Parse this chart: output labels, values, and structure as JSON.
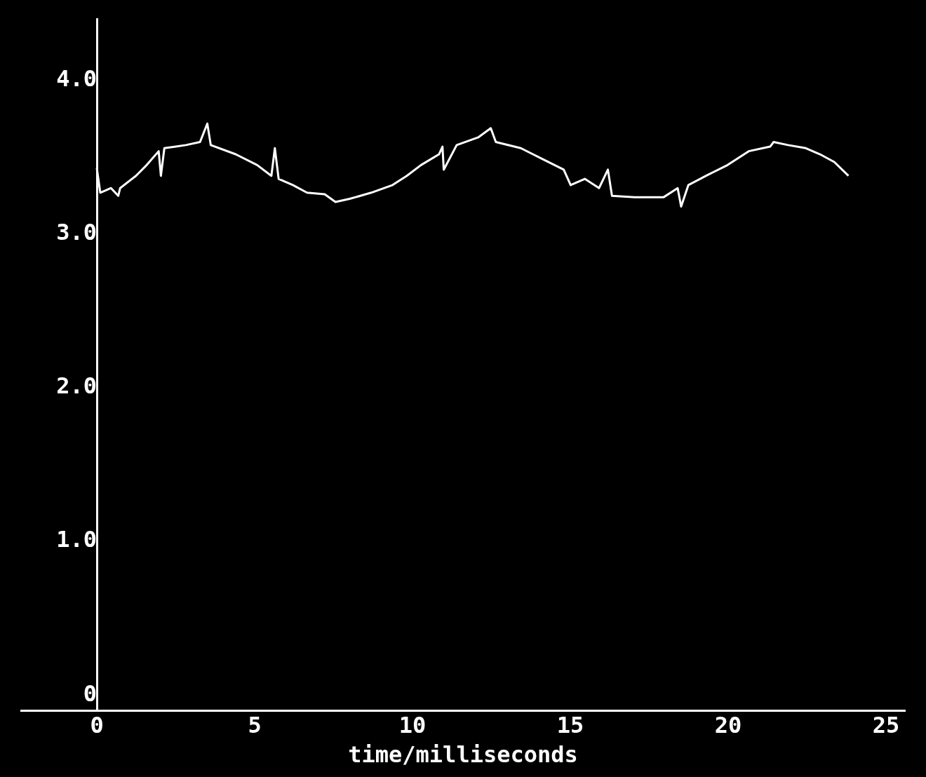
{
  "chart_data": {
    "type": "line",
    "xlabel": "time/milliseconds",
    "x": [
      0,
      0.11,
      0.45,
      0.68,
      0.74,
      1.24,
      1.58,
      1.96,
      2.03,
      2.14,
      2.82,
      3.27,
      3.5,
      3.61,
      4.4,
      5.08,
      5.53,
      5.64,
      5.76,
      6.21,
      6.66,
      7.22,
      7.56,
      8.01,
      8.69,
      9.37,
      9.82,
      10.27,
      10.84,
      10.95,
      10.99,
      11.4,
      12.08,
      12.48,
      12.64,
      13.43,
      14.11,
      14.79,
      15.01,
      15.46,
      15.91,
      16.19,
      16.32,
      17.04,
      17.95,
      18.4,
      18.51,
      18.74,
      19.3,
      19.98,
      20.65,
      21.33,
      21.44,
      21.9,
      22.46,
      22.91,
      23.36,
      23.81
    ],
    "series": [
      {
        "color": "#ffffff",
        "values": [
          3.43,
          3.27,
          3.3,
          3.25,
          3.3,
          3.38,
          3.45,
          3.54,
          3.38,
          3.56,
          3.58,
          3.6,
          3.72,
          3.58,
          3.52,
          3.45,
          3.38,
          3.56,
          3.36,
          3.32,
          3.27,
          3.26,
          3.21,
          3.23,
          3.27,
          3.32,
          3.38,
          3.45,
          3.52,
          3.57,
          3.42,
          3.58,
          3.63,
          3.69,
          3.6,
          3.56,
          3.49,
          3.42,
          3.32,
          3.36,
          3.3,
          3.42,
          3.25,
          3.24,
          3.24,
          3.3,
          3.18,
          3.32,
          3.38,
          3.45,
          3.54,
          3.57,
          3.6,
          3.58,
          3.56,
          3.52,
          3.47,
          3.38
        ]
      }
    ],
    "xlim": [
      -2.4,
      25.6
    ],
    "ylim": [
      -0.1,
      4.4
    ],
    "xticks": [
      0,
      5,
      10,
      15,
      20,
      25
    ],
    "yticks": [
      0,
      {
        "value": 1,
        "label": "1.0"
      },
      {
        "value": 2,
        "label": "2.0"
      },
      {
        "value": 3,
        "label": "3.0"
      },
      {
        "value": 4,
        "label": "4.0"
      }
    ],
    "grid": false,
    "legend": false,
    "marker": "none",
    "line_style": "solid"
  }
}
